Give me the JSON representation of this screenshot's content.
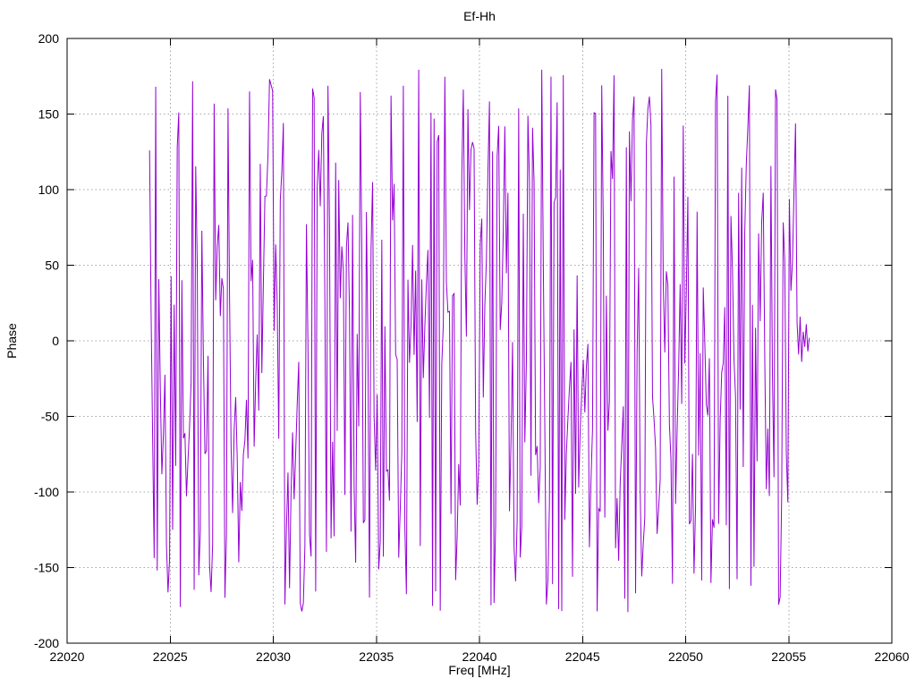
{
  "chart_data": {
    "type": "line",
    "title": "Ef-Hh",
    "xlabel": "Freq [MHz]",
    "ylabel": "Phase",
    "xlim": [
      22020,
      22060
    ],
    "ylim": [
      -200,
      200
    ],
    "xticks": [
      22020,
      22025,
      22030,
      22035,
      22040,
      22045,
      22050,
      22055,
      22060
    ],
    "yticks": [
      -200,
      -150,
      -100,
      -50,
      0,
      50,
      100,
      150,
      200
    ],
    "grid": true,
    "grid_style": "dotted",
    "grid_color": "#a6a6a6",
    "border_color": "#000000",
    "background_color": "#ffffff",
    "legend": "none",
    "series": [
      {
        "name": "Ef-Hh",
        "color": "#9400D3",
        "freq_start": 22024.0,
        "freq_end": 22056.0,
        "n_points": 430,
        "phase_min": -180,
        "phase_max": 180,
        "data_description": "Baseline Ef-Hh wrapped fringe phase vs frequency: noise-like samples aliasing across the ±180° boundary, forming dense near-vertical purple strokes spanning roughly -180 to +180 over 22024-22056 MHz; region 22056-22060 MHz has no data. Values estimated from pixels; reproduced with the deterministic synthesis parameters below.",
        "synthesis": {
          "seed": 1337,
          "step_min_deg": 140,
          "step_max_deg": 400,
          "slow_step_probability": 0.28,
          "slow_step_min_deg": 15,
          "slow_step_max_deg": 70
        },
        "tail_phases": [
          12,
          -9,
          16,
          -14,
          6,
          -4,
          11,
          -7,
          2
        ]
      }
    ]
  }
}
